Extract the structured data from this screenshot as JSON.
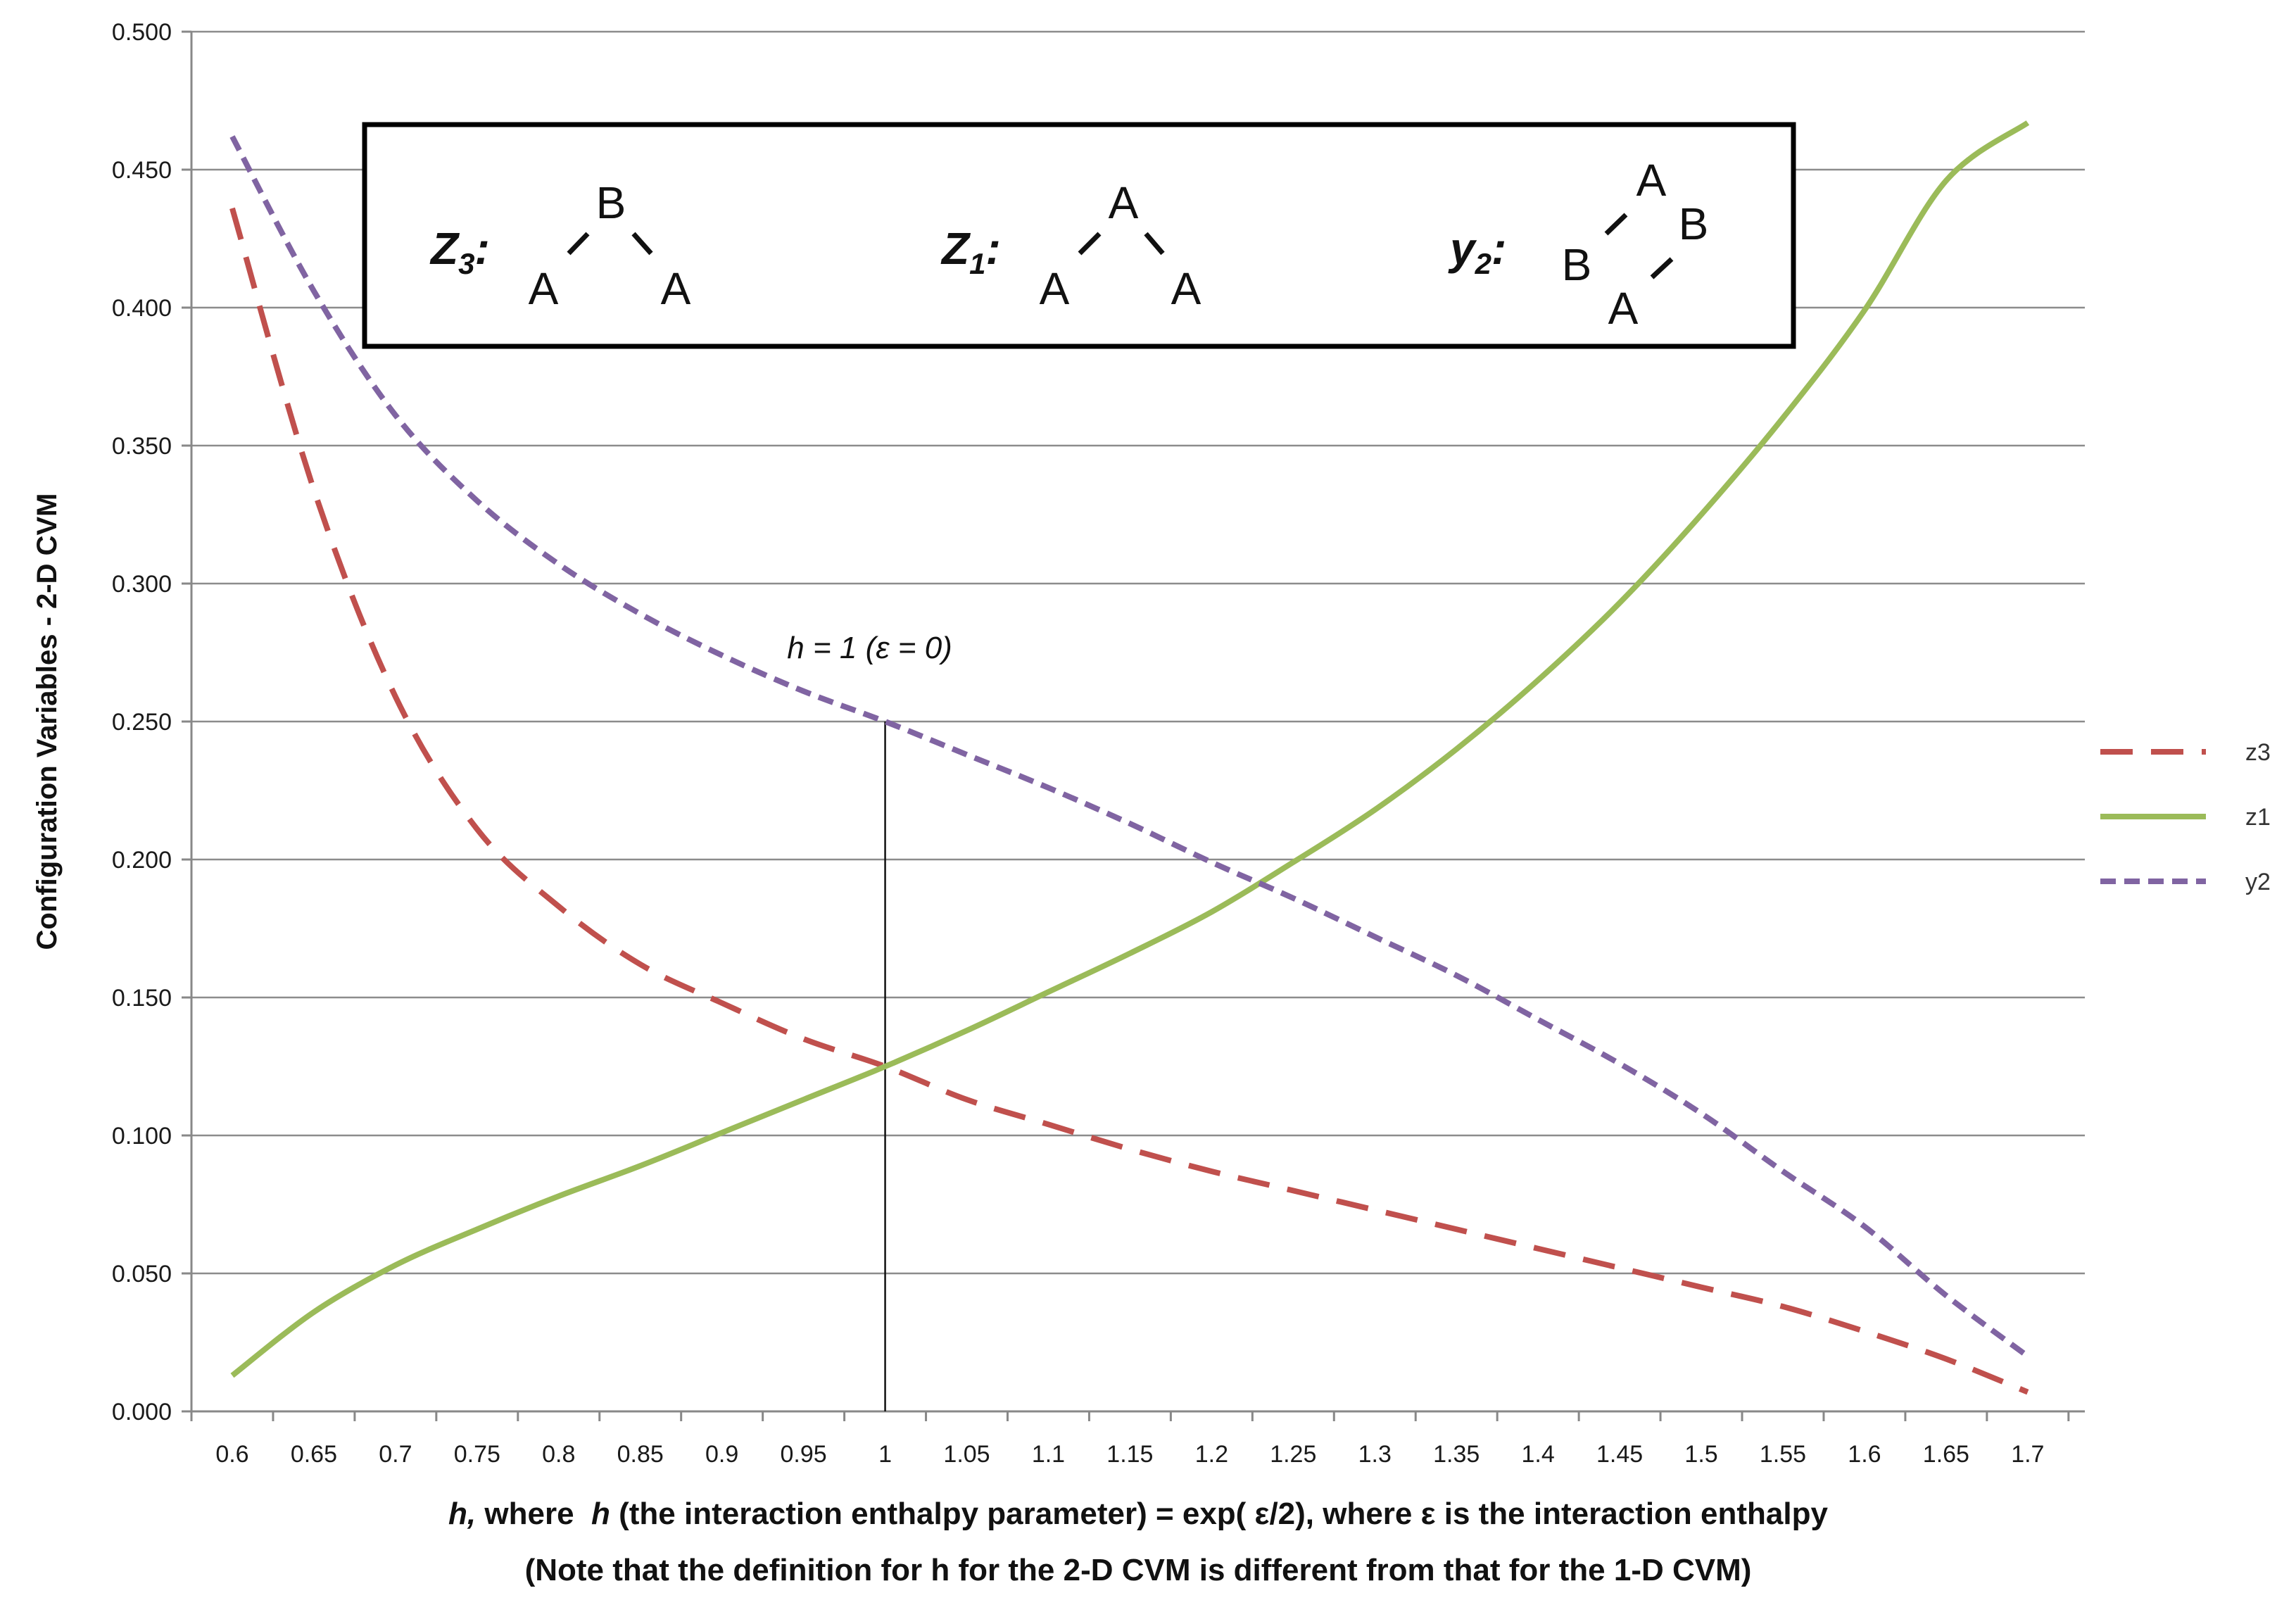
{
  "chart_data": {
    "type": "line",
    "ylabel": "Configuration Variables - 2-D CVM",
    "xlabel_line1": "h, where  h (the interaction enthalpy parameter) = exp( ε/2), where ε is the interaction enthalpy",
    "xlabel_line2": "(Note that the definition for h for the 2-D CVM is different from that for the 1-D CVM)",
    "ylim": [
      0,
      0.5
    ],
    "yticks": [
      "0.000",
      "0.050",
      "0.100",
      "0.150",
      "0.200",
      "0.250",
      "0.300",
      "0.350",
      "0.400",
      "0.450",
      "0.500"
    ],
    "categories": [
      "0.6",
      "0.65",
      "0.7",
      "0.75",
      "0.8",
      "0.85",
      "0.9",
      "0.95",
      "1",
      "1.05",
      "1.1",
      "1.15",
      "1.2",
      "1.25",
      "1.3",
      "1.35",
      "1.4",
      "1.45",
      "1.5",
      "1.55",
      "1.6",
      "1.65",
      "1.7"
    ],
    "grid": "horizontal",
    "legend_position": "right",
    "series": [
      {
        "name": "z3",
        "color": "#c0504d",
        "dash": "long-dash",
        "values": [
          0.436,
          0.334,
          0.259,
          0.211,
          0.183,
          0.162,
          0.148,
          0.135,
          0.125,
          0.113,
          0.104,
          0.095,
          0.087,
          0.08,
          0.073,
          0.066,
          0.059,
          0.052,
          0.045,
          0.038,
          0.029,
          0.019,
          0.007
        ]
      },
      {
        "name": "z1",
        "color": "#9bbb59",
        "dash": "solid",
        "values": [
          0.013,
          0.036,
          0.053,
          0.066,
          0.078,
          0.089,
          0.101,
          0.113,
          0.125,
          0.138,
          0.152,
          0.166,
          0.181,
          0.199,
          0.218,
          0.24,
          0.265,
          0.293,
          0.325,
          0.36,
          0.399,
          0.446,
          0.467
        ]
      },
      {
        "name": "y2",
        "color": "#8064a2",
        "dash": "short-dash",
        "values": [
          0.462,
          0.406,
          0.361,
          0.33,
          0.307,
          0.289,
          0.274,
          0.261,
          0.25,
          0.238,
          0.226,
          0.213,
          0.199,
          0.186,
          0.172,
          0.158,
          0.142,
          0.126,
          0.108,
          0.087,
          0.067,
          0.042,
          0.02
        ]
      }
    ],
    "annotation": {
      "text": "h = 1  (ε = 0)",
      "x": "1",
      "y": 0.25
    }
  },
  "inset": {
    "z3": {
      "label": "Z",
      "sub": "3",
      "colon": ":",
      "top": "B",
      "left": "A",
      "right": "A"
    },
    "z1": {
      "label": "Z",
      "sub": "1",
      "colon": ":",
      "top": "A",
      "left": "A",
      "right": "A"
    },
    "y2": {
      "label": "y",
      "sub": "2",
      "colon": ":",
      "top": "A",
      "right": "B",
      "left": "B",
      "bottom": "A"
    }
  }
}
